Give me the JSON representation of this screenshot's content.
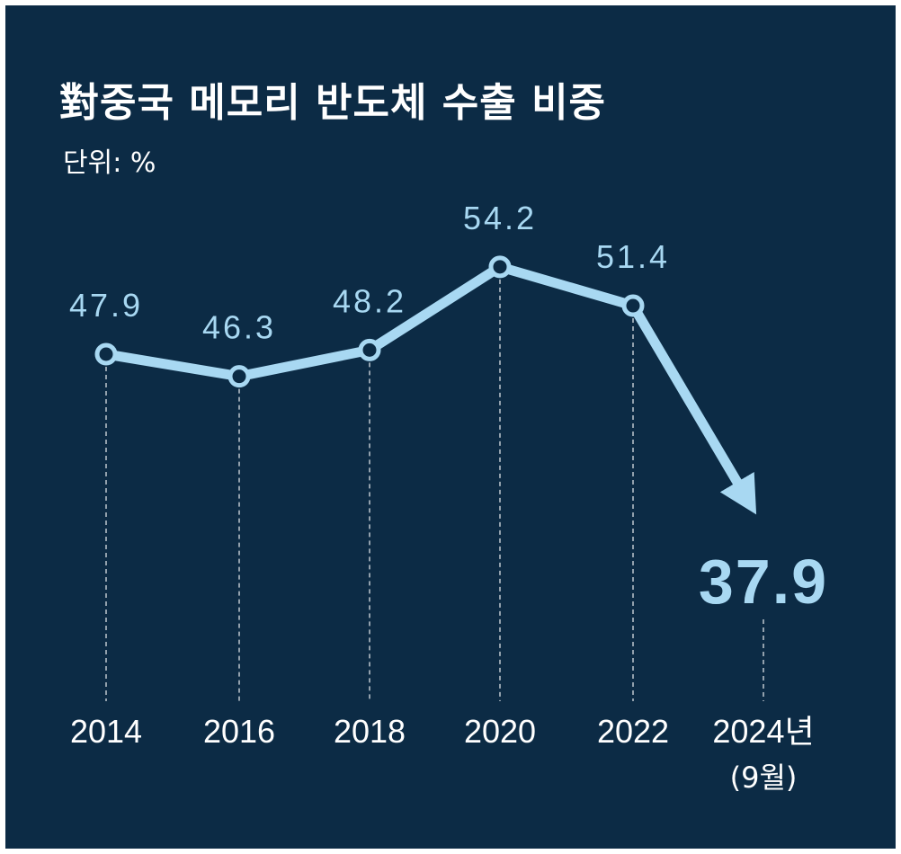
{
  "title": "對중국 메모리 반도체 수출 비중",
  "unit": "단위: %",
  "colors": {
    "background": "#0c2b45",
    "line": "#a8d8f2",
    "text": "#ffffff"
  },
  "chart_data": {
    "type": "line",
    "title": "對중국 메모리 반도체 수출 비중",
    "unit": "%",
    "categories": [
      "2014",
      "2016",
      "2018",
      "2020",
      "2022",
      "2024년"
    ],
    "category_subtitles": [
      "",
      "",
      "",
      "",
      "",
      "(9월)"
    ],
    "values": [
      47.9,
      46.3,
      48.2,
      54.2,
      51.4,
      37.9
    ],
    "value_labels": [
      "47.9",
      "46.3",
      "48.2",
      "54.2",
      "51.4",
      "37.9"
    ],
    "grid": false,
    "highlight_last": true
  }
}
